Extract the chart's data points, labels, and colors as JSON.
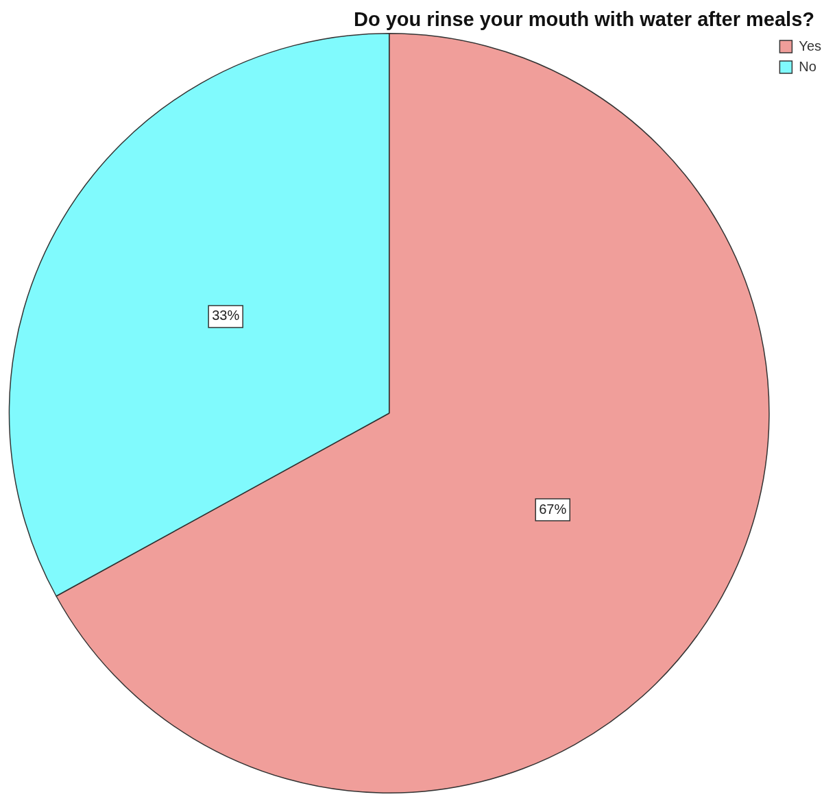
{
  "chart_data": {
    "type": "pie",
    "title": "Do you rinse your mouth with water after meals?",
    "categories": [
      "Yes",
      "No"
    ],
    "values": [
      67,
      33
    ],
    "colors": [
      "#f09e9a",
      "#80fafd"
    ],
    "value_labels": [
      "67%",
      "33%"
    ],
    "legend": "top right"
  }
}
